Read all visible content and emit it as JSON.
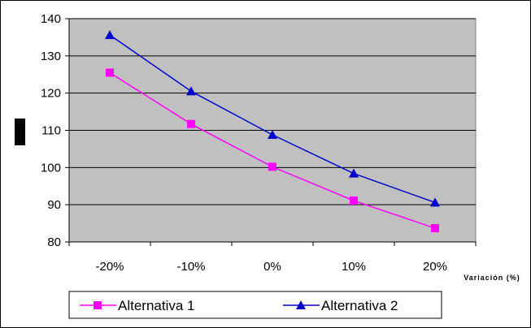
{
  "chart_data": {
    "type": "line",
    "title": "",
    "xlabel": "Variación (%)",
    "ylabel": "",
    "categories": [
      "-20%",
      "-10%",
      "0%",
      "10%",
      "20%"
    ],
    "ylim": [
      80,
      140
    ],
    "yticks": [
      80,
      90,
      100,
      110,
      120,
      130,
      140
    ],
    "grid": true,
    "legend_position": "bottom",
    "series": [
      {
        "name": "Alternativa 1",
        "values": [
          125.5,
          111.7,
          100.2,
          91.1,
          83.7
        ],
        "color": "#ff00ff",
        "marker": "square"
      },
      {
        "name": "Alternativa 2",
        "values": [
          135.6,
          120.5,
          108.8,
          98.4,
          90.6
        ],
        "color": "#0000cc",
        "marker": "triangle"
      }
    ],
    "plot_background": "#c0c0c0"
  }
}
